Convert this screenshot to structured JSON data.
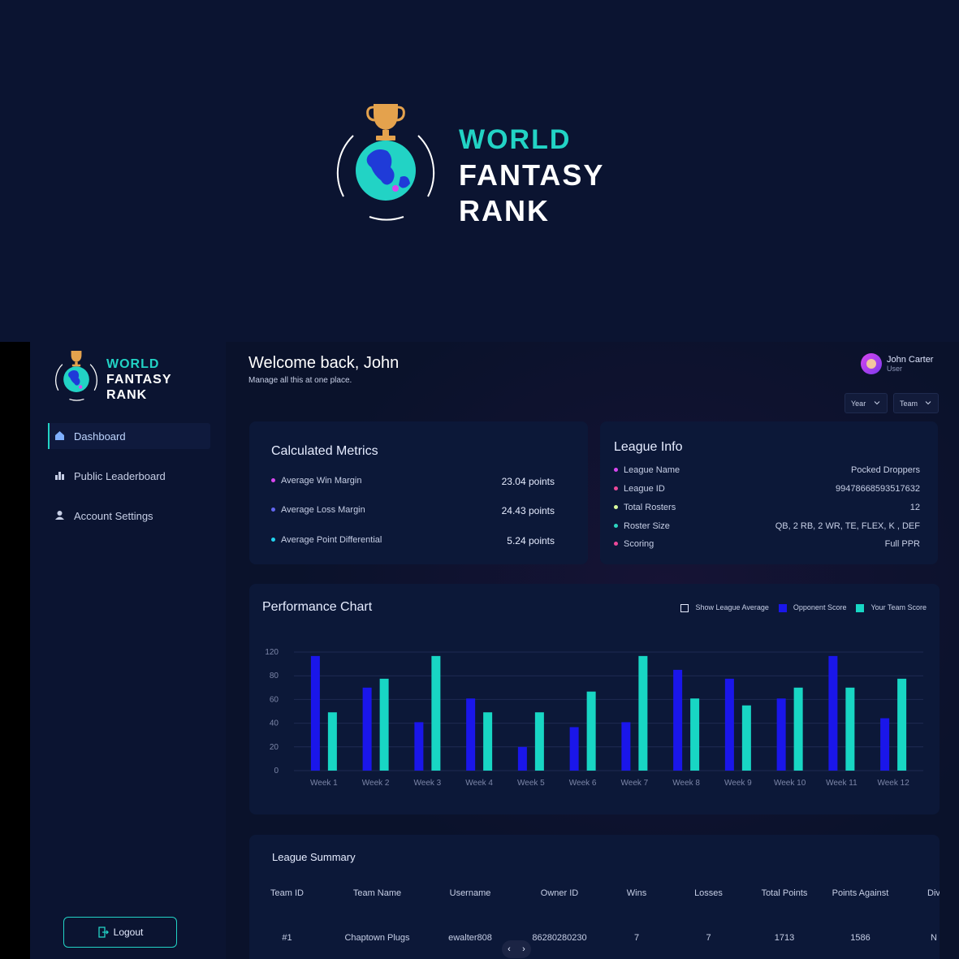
{
  "brand": {
    "line1": "WORLD",
    "line2": "FANTASY",
    "line3": "RANK",
    "accent": "#22d3c5"
  },
  "sidebar": {
    "items": [
      {
        "label": "Dashboard",
        "icon": "home-icon",
        "active": true
      },
      {
        "label": "Public Leaderboard",
        "icon": "bar-chart-icon",
        "active": false
      },
      {
        "label": "Account Settings",
        "icon": "user-icon",
        "active": false
      }
    ],
    "logout_label": "Logout"
  },
  "header": {
    "welcome": "Welcome back, John",
    "subtitle": "Manage all this at one place.",
    "user_name": "John Carter",
    "user_role": "User",
    "filters": [
      {
        "label": "Year"
      },
      {
        "label": "Team"
      }
    ]
  },
  "metrics": {
    "title": "Calculated Metrics",
    "rows": [
      {
        "label": "Average Win Margin",
        "value": "23.04 points",
        "color": "#d946ef"
      },
      {
        "label": "Average Loss Margin",
        "value": "24.43 points",
        "color": "#6366f1"
      },
      {
        "label": "Average Point Differential",
        "value": "5.24 points",
        "color": "#22d3ee"
      }
    ]
  },
  "league": {
    "title": "League Info",
    "rows": [
      {
        "label": "League Name",
        "value": "Pocked Droppers",
        "color": "#d946ef"
      },
      {
        "label": "League ID",
        "value": "99478668593517632",
        "color": "#ec4899"
      },
      {
        "label": "Total Rosters",
        "value": "12",
        "color": "#d9f99d"
      },
      {
        "label": "Roster Size",
        "value": "QB, 2 RB, 2 WR, TE, FLEX, K , DEF",
        "color": "#2dd4bf"
      },
      {
        "label": "Scoring",
        "value": "Full PPR",
        "color": "#ec4899"
      }
    ]
  },
  "chart": {
    "title": "Performance Chart",
    "legend": {
      "league_avg": "Show League Average",
      "opponent": "Opponent Score",
      "team": "Your Team Score"
    },
    "colors": {
      "opponent": "#1a16ea",
      "team": "#18d6c4"
    }
  },
  "chart_data": {
    "type": "bar",
    "categories": [
      "Week 1",
      "Week 2",
      "Week 3",
      "Week 4",
      "Week 5",
      "Week 6",
      "Week 7",
      "Week 8",
      "Week 9",
      "Week 10",
      "Week 11",
      "Week 12"
    ],
    "series": [
      {
        "name": "Opponent Score",
        "values": [
          116,
          84,
          49,
          73,
          24,
          44,
          49,
          102,
          93,
          73,
          116,
          53
        ]
      },
      {
        "name": "Your Team Score",
        "values": [
          59,
          93,
          116,
          59,
          59,
          80,
          116,
          73,
          66,
          84,
          84,
          93
        ]
      }
    ],
    "yticks": [
      "120",
      "80",
      "60",
      "40",
      "20",
      "0"
    ],
    "ylim": [
      0,
      120
    ],
    "grid": true,
    "legend_position": "top-right"
  },
  "summary": {
    "title": "League Summary",
    "columns": [
      "Team ID",
      "Team Name",
      "Username",
      "Owner ID",
      "Wins",
      "Losses",
      "Total Points",
      "Points Against",
      "Div"
    ],
    "rows": [
      [
        "#1",
        "Chaptown Plugs",
        "ewalter808",
        "86280280230",
        "7",
        "7",
        "1713",
        "1586",
        "N"
      ]
    ]
  }
}
